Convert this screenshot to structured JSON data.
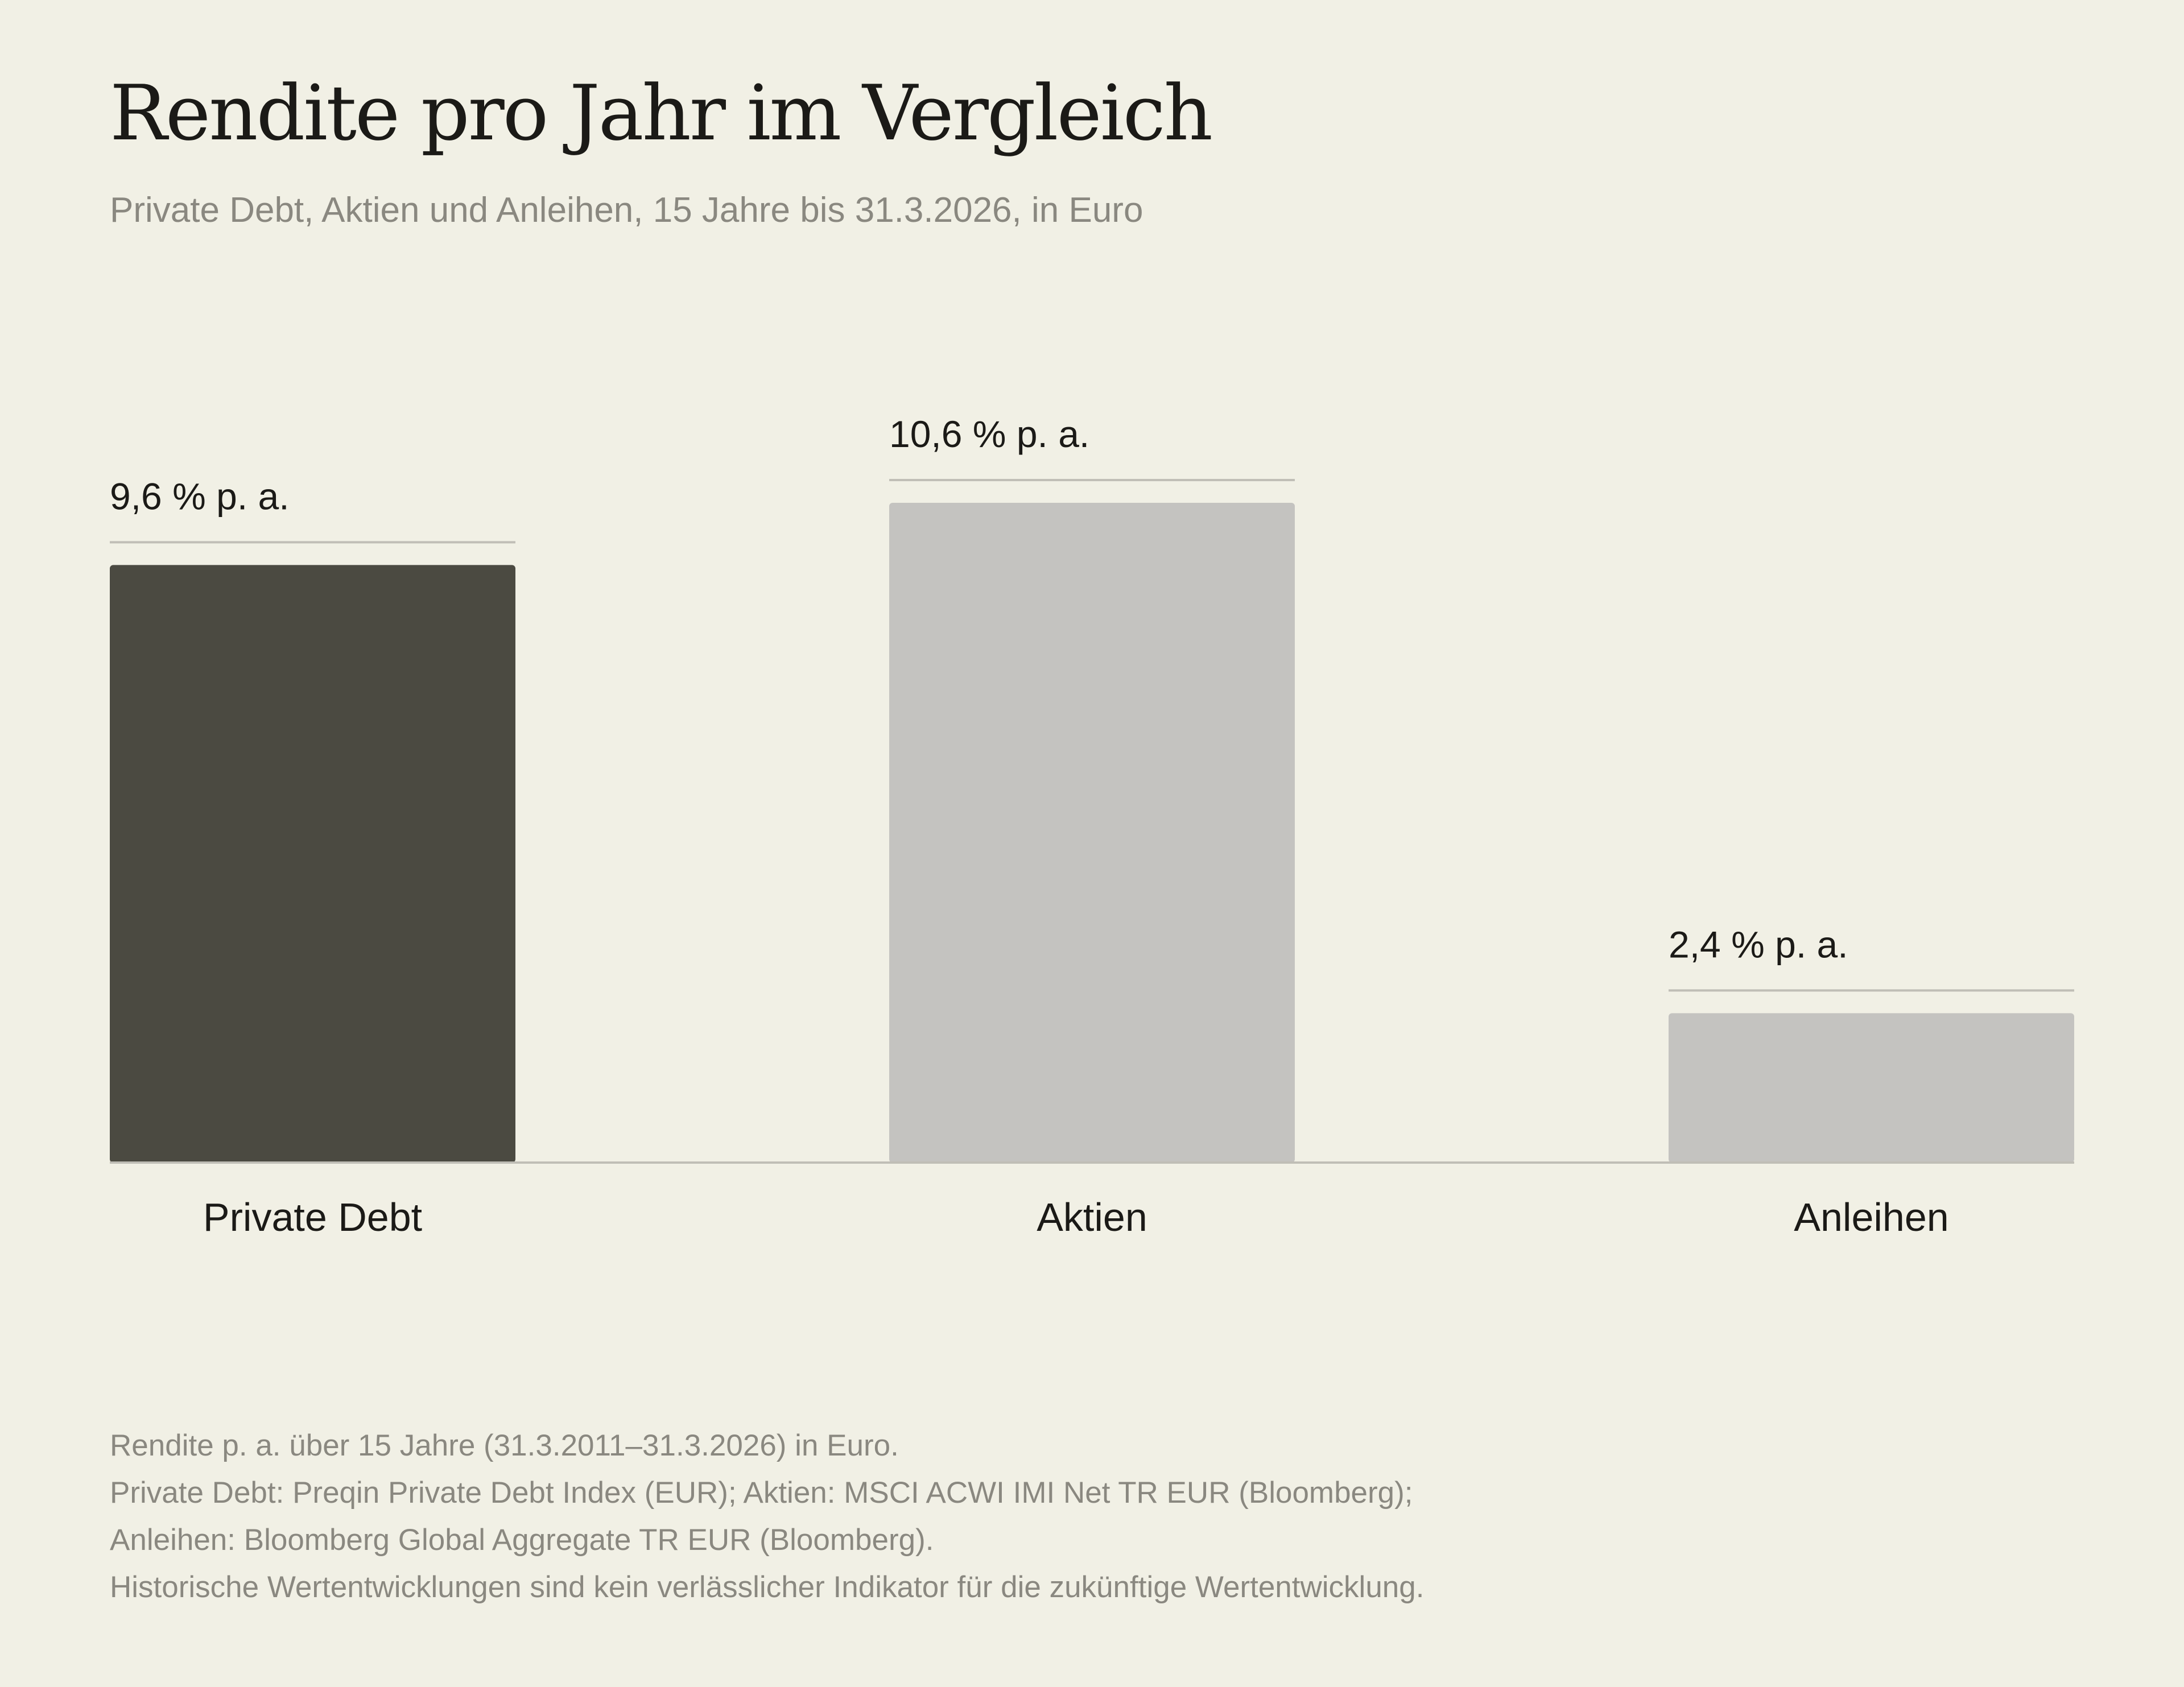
{
  "header": {
    "title": "Rendite pro Jahr im Vergleich",
    "subtitle": "Private Debt, Aktien und Anleihen, 15 Jahre bis 31.3.2026, in Euro"
  },
  "chart_data": {
    "type": "bar",
    "title": "Rendite pro Jahr im Vergleich",
    "subtitle": "Private Debt, Aktien und Anleihen, 15 Jahre bis 31.3.2026, in Euro",
    "xlabel": "",
    "ylabel": "",
    "categories": [
      "Private Debt",
      "Aktien",
      "Anleihen"
    ],
    "values": [
      9.6,
      10.6,
      2.4
    ],
    "value_labels": [
      "9,6 % p. a.",
      "10,6 % p. a.",
      "2,4 % p. a."
    ],
    "colors": [
      "#4b4a41",
      "#c4c3c0",
      "#c4c3c0"
    ],
    "ylim": [
      0,
      10.6
    ],
    "grid": false,
    "legend": "none"
  },
  "colors": {
    "background": "#f1f0e5",
    "highlight_bar": "#4b4a41",
    "bar": "#c4c3c0",
    "rule": "#c0beb6",
    "text": "#1b1a17",
    "muted_text": "#8a8880"
  },
  "footnote": {
    "lines": [
      "Rendite p. a. über 15 Jahre (31.3.2011–31.3.2026) in Euro.",
      "Private Debt: Preqin Private Debt Index (EUR); Aktien: MSCI ACWI IMI Net TR EUR (Bloomberg);",
      "Anleihen: Bloomberg Global Aggregate TR EUR (Bloomberg).",
      "Historische Wertentwicklungen sind kein verlässlicher Indikator für die zukünftige Wertentwicklung."
    ]
  }
}
